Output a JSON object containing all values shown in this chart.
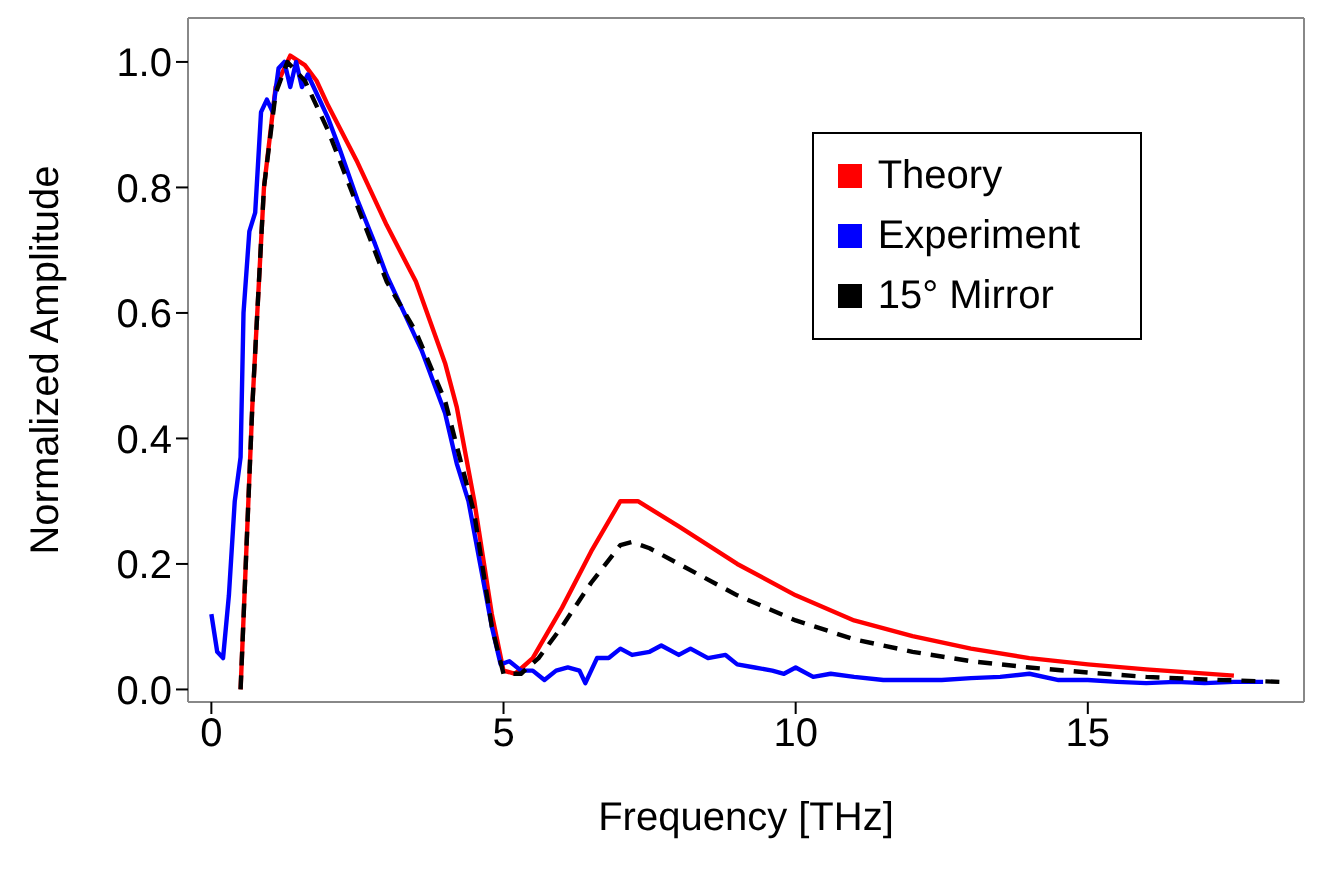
{
  "chart_data": {
    "type": "line",
    "xlabel": "Frequency [THz]",
    "ylabel": "Normalized Amplitude",
    "xlim": [
      -0.4,
      18.7
    ],
    "ylim": [
      -0.02,
      1.07
    ],
    "xticks": [
      0,
      5,
      10,
      15
    ],
    "yticks": [
      {
        "value": 0,
        "label": "0.0"
      },
      0.2,
      0.4,
      0.6,
      0.8,
      {
        "value": 1,
        "label": "1.0"
      }
    ],
    "legend": "top right",
    "marker": "none",
    "series": [
      {
        "name": "Theory",
        "color": "#ff0000",
        "line_style": "solid",
        "x": [
          0.5,
          0.7,
          0.9,
          1.1,
          1.35,
          1.6,
          1.8,
          2.0,
          2.5,
          3.0,
          3.5,
          4.0,
          4.2,
          4.5,
          4.8,
          5.0,
          5.2,
          5.5,
          6.0,
          6.5,
          7.0,
          7.3,
          8.0,
          9.0,
          10.0,
          11,
          12,
          13,
          14,
          15,
          16,
          17.5
        ],
        "values": [
          0,
          0.45,
          0.8,
          0.96,
          1.01,
          0.995,
          0.97,
          0.93,
          0.84,
          0.74,
          0.65,
          0.52,
          0.45,
          0.3,
          0.12,
          0.03,
          0.025,
          0.05,
          0.13,
          0.22,
          0.3,
          0.3,
          0.26,
          0.2,
          0.15,
          0.11,
          0.085,
          0.065,
          0.05,
          0.04,
          0.032,
          0.022
        ]
      },
      {
        "name": "Experiment",
        "color": "#0000ff",
        "line_style": "solid",
        "x": [
          0,
          0.1,
          0.2,
          0.3,
          0.4,
          0.5,
          0.55,
          0.65,
          0.75,
          0.85,
          0.95,
          1.05,
          1.15,
          1.25,
          1.35,
          1.45,
          1.55,
          1.65,
          1.8,
          2.0,
          2.2,
          2.5,
          2.8,
          3.0,
          3.3,
          3.6,
          4.0,
          4.2,
          4.4,
          4.6,
          4.8,
          4.95,
          5.1,
          5.3,
          5.5,
          5.7,
          5.9,
          6.1,
          6.3,
          6.4,
          6.6,
          6.8,
          7.0,
          7.2,
          7.5,
          7.7,
          8.0,
          8.2,
          8.5,
          8.8,
          9.0,
          9.3,
          9.6,
          9.8,
          10.0,
          10.3,
          10.6,
          11,
          11.5,
          12,
          12.5,
          13,
          13.5,
          14,
          14.5,
          15,
          15.5,
          16,
          16.5,
          17,
          17.5,
          18
        ],
        "values": [
          0.12,
          0.06,
          0.05,
          0.15,
          0.3,
          0.37,
          0.6,
          0.73,
          0.76,
          0.92,
          0.94,
          0.92,
          0.99,
          1.0,
          0.96,
          1.0,
          0.96,
          0.98,
          0.95,
          0.91,
          0.86,
          0.78,
          0.71,
          0.66,
          0.6,
          0.54,
          0.44,
          0.36,
          0.3,
          0.2,
          0.1,
          0.04,
          0.045,
          0.03,
          0.03,
          0.015,
          0.03,
          0.035,
          0.03,
          0.01,
          0.05,
          0.05,
          0.065,
          0.055,
          0.06,
          0.07,
          0.055,
          0.065,
          0.05,
          0.055,
          0.04,
          0.035,
          0.03,
          0.025,
          0.035,
          0.02,
          0.025,
          0.02,
          0.015,
          0.015,
          0.015,
          0.018,
          0.02,
          0.025,
          0.015,
          0.015,
          0.012,
          0.01,
          0.012,
          0.01,
          0.012,
          0.012
        ]
      },
      {
        "name": "15° Mirror",
        "color": "#000000",
        "line_style": "dashed",
        "x": [
          0.5,
          0.7,
          0.9,
          1.1,
          1.3,
          1.6,
          2.0,
          2.5,
          3.0,
          3.5,
          4.0,
          4.5,
          4.8,
          5.0,
          5.3,
          5.6,
          6.0,
          6.5,
          7.0,
          7.2,
          7.5,
          8.0,
          9.0,
          10,
          11,
          12,
          13,
          14,
          15,
          16,
          17,
          18.3
        ],
        "values": [
          0,
          0.45,
          0.8,
          0.95,
          1.0,
          0.97,
          0.89,
          0.77,
          0.65,
          0.57,
          0.46,
          0.28,
          0.1,
          0.025,
          0.025,
          0.05,
          0.1,
          0.17,
          0.23,
          0.235,
          0.225,
          0.2,
          0.15,
          0.11,
          0.08,
          0.06,
          0.045,
          0.035,
          0.027,
          0.02,
          0.016,
          0.012
        ]
      }
    ]
  }
}
